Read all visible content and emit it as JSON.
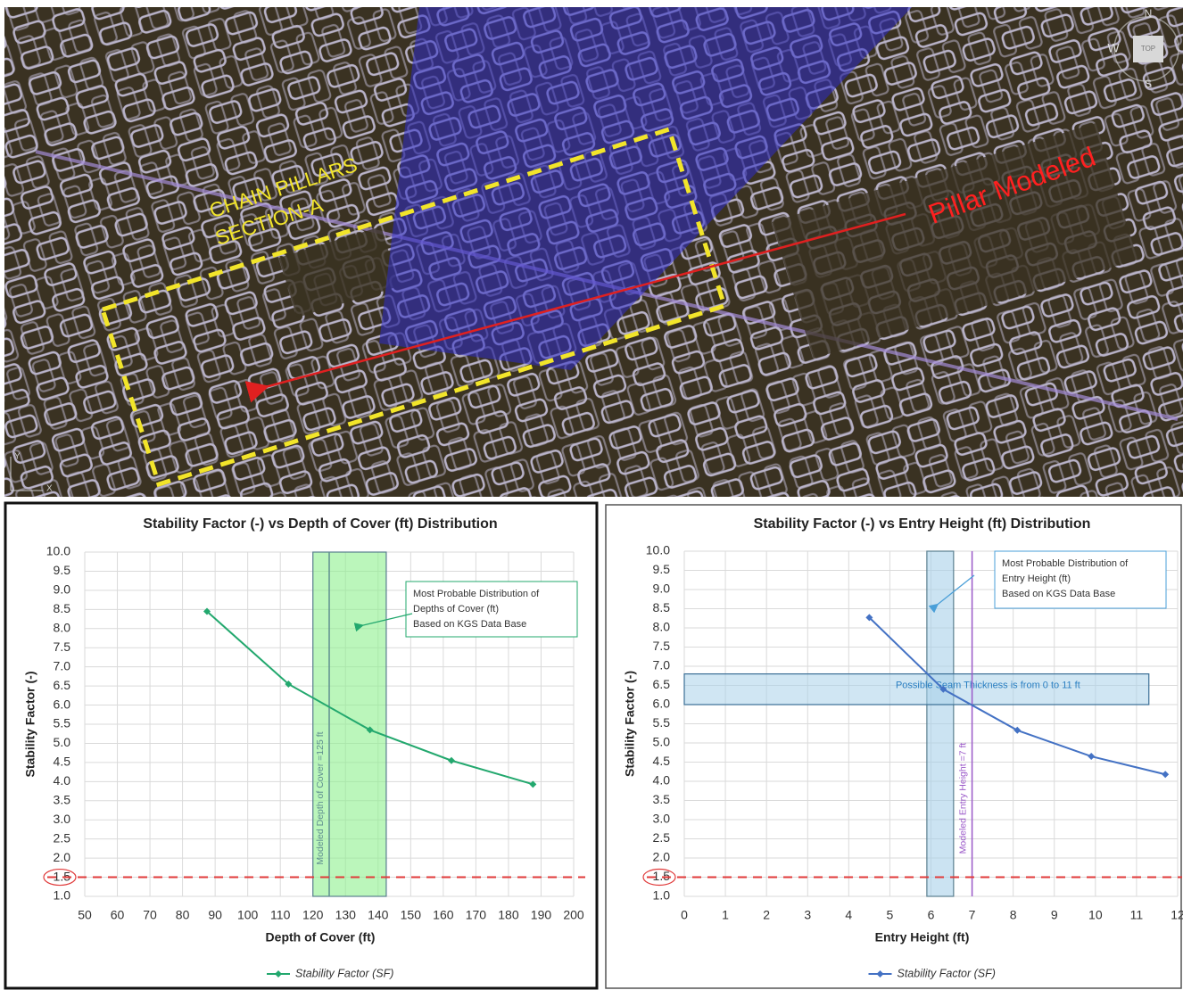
{
  "map": {
    "labels": [
      "CHAIN PILLARS",
      "SECTION-A"
    ],
    "callout": "Pillar Modeled",
    "compass": {
      "n": "N",
      "w": "W",
      "s": "S",
      "top": "TOP"
    },
    "axis_labels": [
      "Y",
      "X"
    ]
  },
  "chart_data": [
    {
      "type": "line",
      "title": "Stability Factor (-) vs Depth of Cover (ft) Distribution",
      "x_label": "Depth of Cover (ft)",
      "y_label": "Stability Factor (-)",
      "x": [
        87.5,
        112.5,
        137.5,
        162.5,
        187.5
      ],
      "series": [
        {
          "name": "Stability Factor (SF)",
          "color": "#23a86e",
          "values": [
            8.45,
            6.55,
            5.35,
            4.55,
            3.93
          ]
        }
      ],
      "xlim": [
        50,
        200
      ],
      "xticks": [
        50,
        60,
        70,
        80,
        90,
        100,
        110,
        120,
        130,
        140,
        150,
        160,
        170,
        180,
        190,
        200
      ],
      "ylim": [
        1,
        10
      ],
      "yticks": [
        {
          "value": 1,
          "label": "1.0"
        },
        1.5,
        {
          "value": 2,
          "label": "2.0"
        },
        2.5,
        {
          "value": 3,
          "label": "3.0"
        },
        3.5,
        {
          "value": 4,
          "label": "4.0"
        },
        4.5,
        {
          "value": 5,
          "label": "5.0"
        },
        5.5,
        {
          "value": 6,
          "label": "6.0"
        },
        6.5,
        {
          "value": 7,
          "label": "7.0"
        },
        7.5,
        {
          "value": 8,
          "label": "8.0"
        },
        8.5,
        {
          "value": 9,
          "label": "9.0"
        },
        9.5,
        {
          "value": 10,
          "label": "10.0"
        }
      ],
      "grid": true,
      "legend": "bottom",
      "x_bands": [
        {
          "xmin": 120,
          "xmax": 142.5,
          "color": "#8ef08e"
        }
      ],
      "vlines": [
        {
          "x": 125,
          "label": "Modeled Depth of Cover =125 ft",
          "color": "#5f8f8f"
        }
      ],
      "hlines": [
        {
          "y": 1.5,
          "color": "#e03a3a"
        }
      ],
      "annotation": {
        "lines": [
          "Most Probable Distribution of",
          "Depths of Cover (ft)",
          "Based on KGS Data Base"
        ],
        "color": "#23a86e"
      }
    },
    {
      "type": "line",
      "title": "Stability Factor (-) vs Entry Height (ft) Distribution",
      "x_label": "Entry Height (ft)",
      "y_label": "Stability Factor (-)",
      "x": [
        4.5,
        6.3,
        8.1,
        9.9,
        11.7
      ],
      "series": [
        {
          "name": "Stability Factor (SF)",
          "color": "#4472c4",
          "values": [
            8.27,
            6.4,
            5.33,
            4.65,
            4.18
          ]
        }
      ],
      "xlim": [
        0,
        12
      ],
      "xticks": [
        0,
        1,
        2,
        3,
        4,
        5,
        6,
        7,
        8,
        9,
        10,
        11,
        12
      ],
      "ylim": [
        1,
        10
      ],
      "yticks": [
        {
          "value": 1,
          "label": "1.0"
        },
        1.5,
        {
          "value": 2,
          "label": "2.0"
        },
        2.5,
        {
          "value": 3,
          "label": "3.0"
        },
        3.5,
        {
          "value": 4,
          "label": "4.0"
        },
        4.5,
        {
          "value": 5,
          "label": "5.0"
        },
        5.5,
        {
          "value": 6,
          "label": "6.0"
        },
        6.5,
        {
          "value": 7,
          "label": "7.0"
        },
        7.5,
        {
          "value": 8,
          "label": "8.0"
        },
        8.5,
        {
          "value": 9,
          "label": "9.0"
        },
        9.5,
        {
          "value": 10,
          "label": "10.0"
        }
      ],
      "grid": true,
      "legend": "bottom",
      "x_bands": [
        {
          "xmin": 5.9,
          "xmax": 6.55,
          "color": "#a9d1ea"
        }
      ],
      "y_bands": [
        {
          "ymin": 6.0,
          "ymax": 6.8,
          "xmin": 0,
          "xmax": 11.3,
          "label": "Possible Seam Thickness is from 0 to 11 ft",
          "color": "#a9d1ea"
        }
      ],
      "vlines": [
        {
          "x": 7,
          "label": "Modeled Entry Height =7 ft",
          "color": "#9b59c9"
        }
      ],
      "hlines": [
        {
          "y": 1.5,
          "color": "#e03a3a"
        }
      ],
      "annotation": {
        "lines": [
          "Most Probable Distribution of",
          "Entry Height (ft)",
          "Based on KGS Data Base"
        ],
        "color": "#4a9fd8"
      }
    }
  ]
}
